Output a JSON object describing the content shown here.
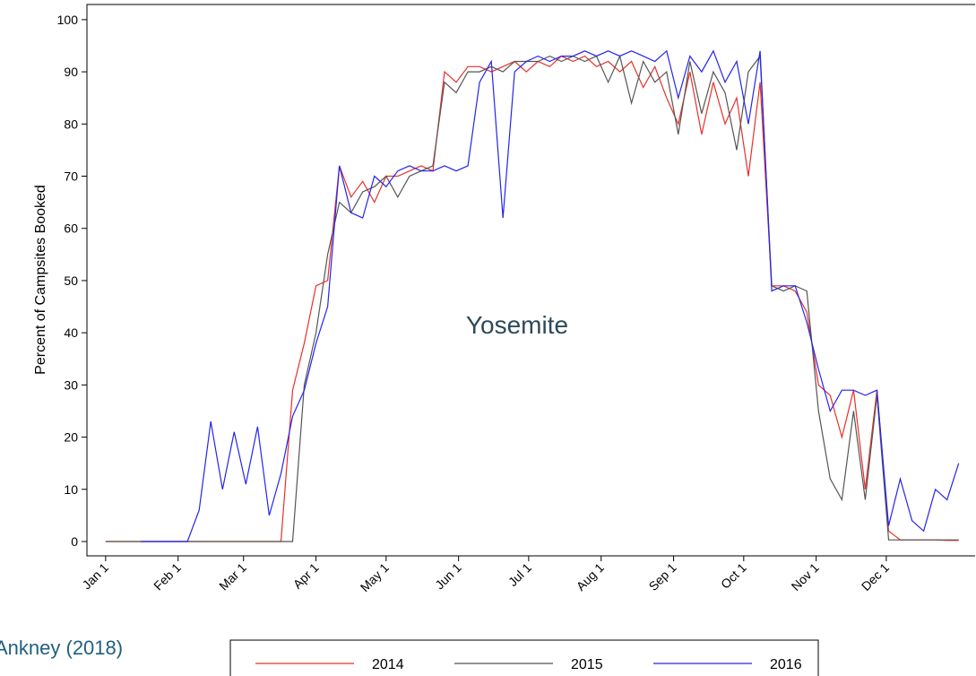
{
  "chart_data": {
    "type": "line",
    "ylabel": "Percent of Campsites Booked",
    "annotations": [
      "Yosemite",
      "Ankney (2018)"
    ],
    "x": [
      1,
      6,
      11,
      16,
      21,
      26,
      31,
      36,
      41,
      46,
      51,
      56,
      61,
      66,
      71,
      76,
      81,
      86,
      91,
      96,
      101,
      106,
      111,
      116,
      121,
      126,
      131,
      136,
      141,
      146,
      151,
      156,
      161,
      166,
      171,
      176,
      181,
      186,
      191,
      196,
      201,
      206,
      211,
      216,
      221,
      226,
      231,
      236,
      241,
      246,
      251,
      256,
      261,
      266,
      271,
      276,
      281,
      286,
      291,
      296,
      301,
      306,
      311,
      316,
      321,
      326,
      331,
      336,
      341,
      346,
      351,
      356,
      361,
      366
    ],
    "series": [
      {
        "name": "2014",
        "color": "#e8302a",
        "values": [
          0,
          0,
          0,
          0,
          0,
          0,
          0,
          0,
          0,
          0,
          0,
          0,
          0,
          0,
          0,
          0,
          29,
          38,
          49,
          50,
          72,
          66,
          69,
          65,
          70,
          70,
          71,
          72,
          71,
          90,
          88,
          91,
          91,
          90,
          91,
          92,
          90,
          92,
          91,
          93,
          92,
          93,
          91,
          92,
          90,
          92,
          87,
          91,
          85,
          80,
          90,
          78,
          88,
          80,
          85,
          70,
          88,
          49,
          49,
          48,
          44,
          30,
          28,
          20,
          29,
          10,
          29,
          2,
          0.3,
          0.3,
          0.3,
          0.3,
          0.2,
          0.2
        ]
      },
      {
        "name": "2015",
        "color": "#555555",
        "values": [
          0,
          0,
          0,
          0,
          0,
          0,
          0,
          0,
          0,
          0,
          0,
          0,
          0,
          0,
          0,
          0,
          0,
          30,
          40,
          55,
          65,
          63,
          67,
          68,
          70,
          66,
          70,
          71,
          72,
          88,
          86,
          90,
          90,
          91,
          90,
          92,
          92,
          92,
          93,
          92,
          93,
          92,
          93,
          88,
          93,
          84,
          92,
          88,
          90,
          78,
          92,
          82,
          90,
          86,
          75,
          90,
          93,
          49,
          48,
          49,
          48,
          25,
          12,
          8,
          25,
          8,
          28,
          0.3,
          0.3,
          0.3,
          0.3,
          0.3,
          0.3,
          0.3
        ]
      },
      {
        "name": "2016",
        "color": "#2424ee",
        "values": [
          null,
          null,
          null,
          0,
          0,
          0,
          0,
          0,
          6,
          23,
          10,
          21,
          11,
          22,
          5,
          13,
          24,
          29,
          38,
          45,
          72,
          63,
          62,
          70,
          68,
          71,
          72,
          71,
          71,
          72,
          71,
          72,
          88,
          92,
          62,
          90,
          92,
          93,
          92,
          93,
          93,
          94,
          93,
          94,
          93,
          94,
          93,
          92,
          94,
          85,
          93,
          90,
          94,
          88,
          92,
          80,
          94,
          48,
          49,
          49,
          42,
          33,
          25,
          29,
          29,
          28,
          29,
          3,
          12,
          4,
          2,
          10,
          8,
          15
        ]
      }
    ],
    "xlim": [
      -7,
      373
    ],
    "ylim": [
      -2.75,
      102.9
    ],
    "xticks": [
      {
        "value": 1,
        "label": "Jan 1"
      },
      {
        "value": 32,
        "label": "Feb 1"
      },
      {
        "value": 60,
        "label": "Mar 1"
      },
      {
        "value": 91,
        "label": "Apr 1"
      },
      {
        "value": 121,
        "label": "May 1"
      },
      {
        "value": 152,
        "label": "Jun 1"
      },
      {
        "value": 182,
        "label": "Jul 1"
      },
      {
        "value": 213,
        "label": "Aug 1"
      },
      {
        "value": 244,
        "label": "Sep 1"
      },
      {
        "value": 274,
        "label": "Oct 1"
      },
      {
        "value": 305,
        "label": "Nov 1"
      },
      {
        "value": 335,
        "label": "Dec 1"
      }
    ],
    "yticks": [
      0,
      10,
      20,
      30,
      40,
      50,
      60,
      70,
      80,
      90,
      100
    ],
    "grid": false,
    "legend": "bottom"
  }
}
